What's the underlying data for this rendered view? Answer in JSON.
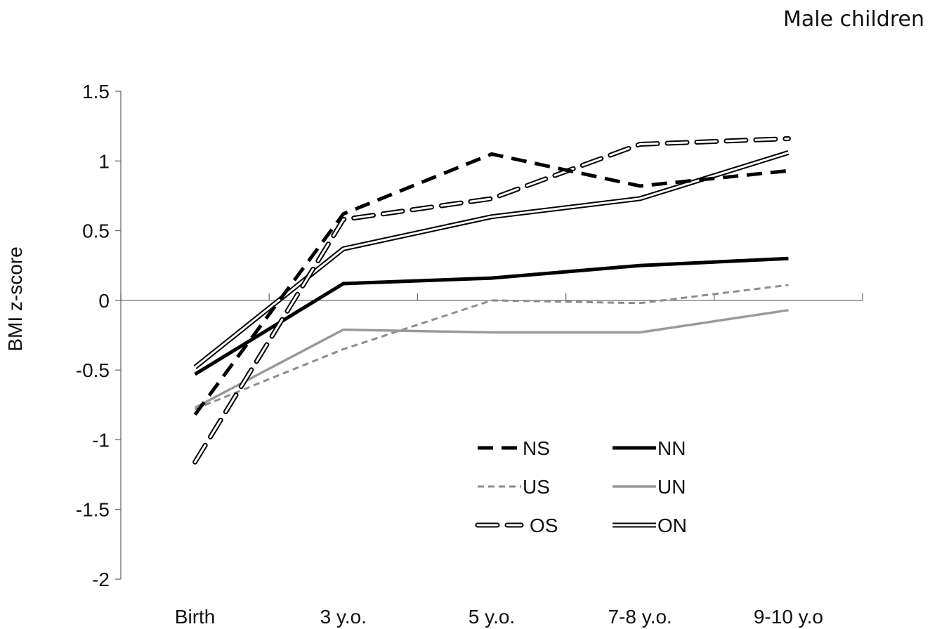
{
  "chart_data": {
    "type": "line",
    "title": "Male children",
    "xlabel": "",
    "ylabel": "BMI z-score",
    "categories": [
      "Birth",
      "3 y.o.",
      "5 y.o.",
      "7-8 y.o.",
      "9-10 y.o"
    ],
    "ylim": [
      -2,
      1.5
    ],
    "yticks": [
      "1.5",
      "1",
      "0.5",
      "0",
      "-0.5",
      "-1",
      "-1.5",
      "-2"
    ],
    "grid": false,
    "legend_position": "bottom-center",
    "series": [
      {
        "name": "NS",
        "style": "dashed-black",
        "values": [
          -0.82,
          0.62,
          1.05,
          0.82,
          0.93
        ]
      },
      {
        "name": "NN",
        "style": "solid-black",
        "values": [
          -0.53,
          0.12,
          0.16,
          0.25,
          0.3
        ]
      },
      {
        "name": "US",
        "style": "dashed-gray",
        "values": [
          -0.78,
          -0.35,
          0.0,
          -0.02,
          0.11
        ]
      },
      {
        "name": "UN",
        "style": "solid-gray",
        "values": [
          -0.77,
          -0.21,
          -0.23,
          -0.23,
          -0.07
        ]
      },
      {
        "name": "OS",
        "style": "double-dashed",
        "values": [
          -1.16,
          0.58,
          0.73,
          1.12,
          1.16
        ]
      },
      {
        "name": "ON",
        "style": "double-solid",
        "values": [
          -0.48,
          0.37,
          0.6,
          0.73,
          1.06
        ]
      }
    ]
  }
}
